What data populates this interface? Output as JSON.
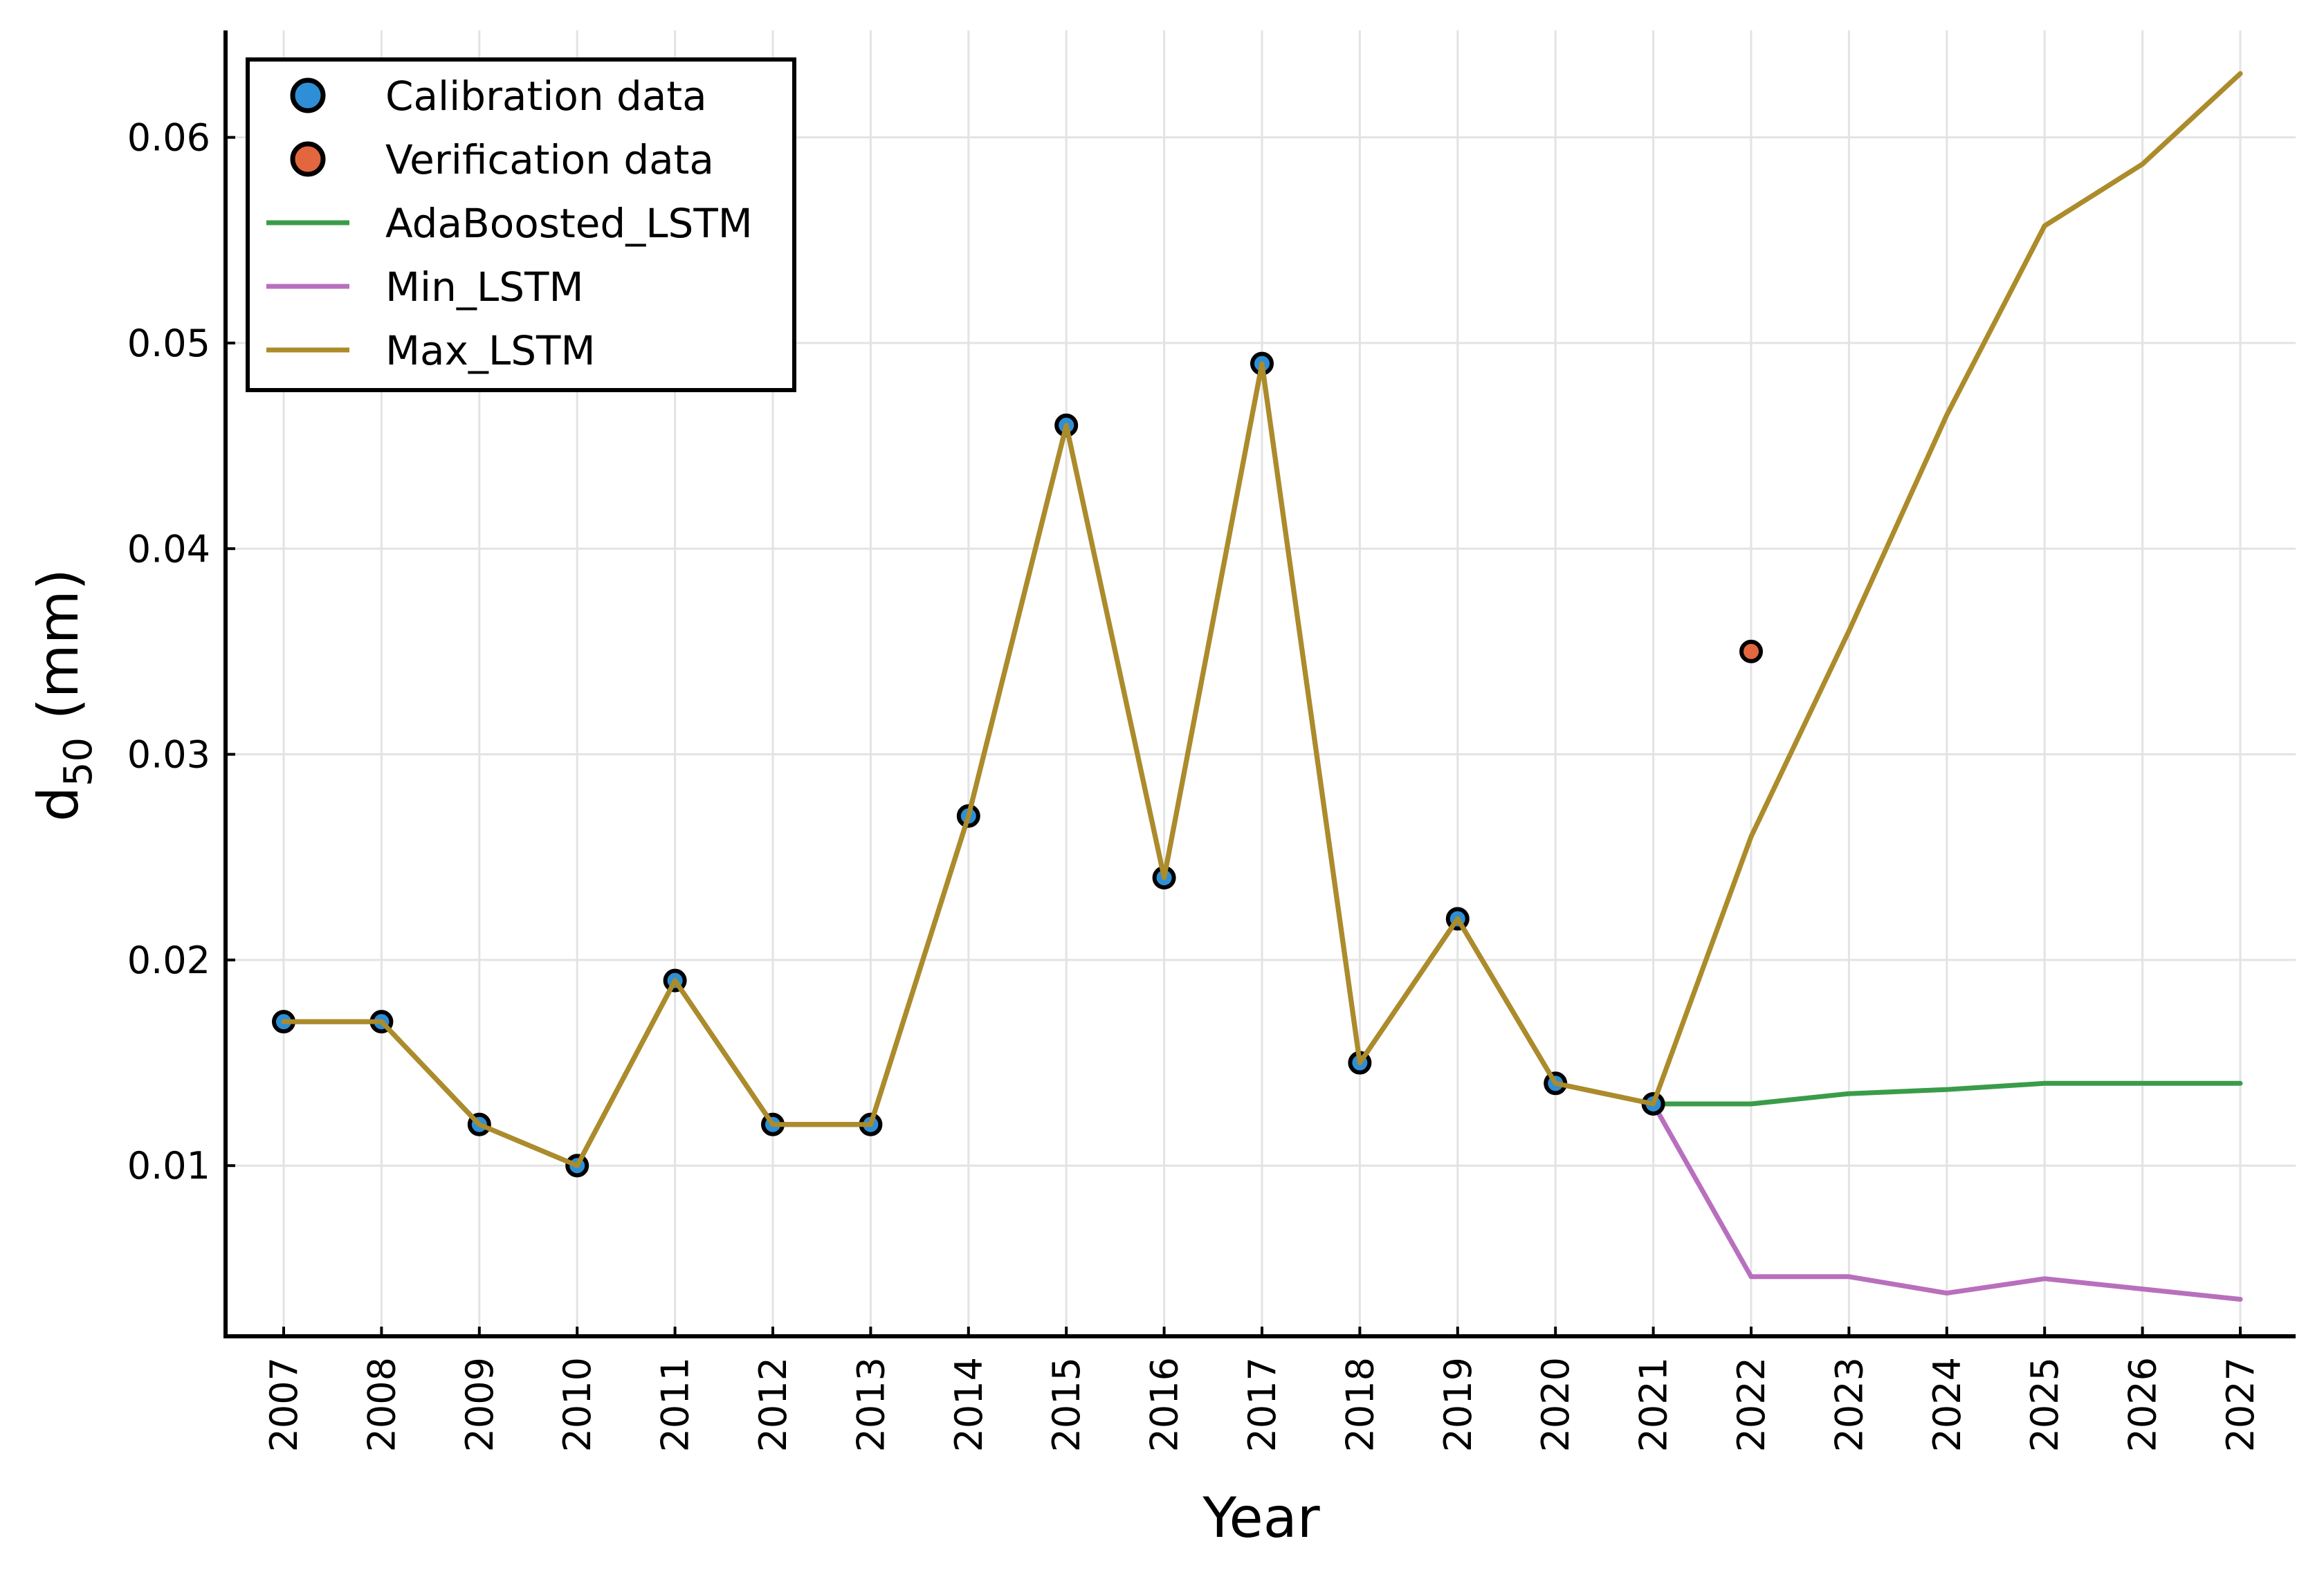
{
  "chart_data": {
    "type": "line",
    "xlabel": "Year",
    "ylabel": "d50 (mm)",
    "ylabel_main": "d",
    "ylabel_sub": "50",
    "ylabel_rest": " (mm)",
    "x_categories": [
      "2007",
      "2008",
      "2009",
      "2010",
      "2011",
      "2012",
      "2013",
      "2014",
      "2015",
      "2016",
      "2017",
      "2018",
      "2019",
      "2020",
      "2021",
      "2022",
      "2023",
      "2024",
      "2025",
      "2026",
      "2027"
    ],
    "ylim": [
      0.0017,
      0.0652
    ],
    "yticks": [
      0.01,
      0.02,
      0.03,
      0.04,
      0.05,
      0.06
    ],
    "ytick_labels": [
      "0.01",
      "0.02",
      "0.03",
      "0.04",
      "0.05",
      "0.06"
    ],
    "grid": true,
    "legend_position": "top-left",
    "series": [
      {
        "name": "Calibration data",
        "kind": "scatter",
        "color": "#2e8fd6",
        "x": [
          "2007",
          "2008",
          "2009",
          "2010",
          "2011",
          "2012",
          "2013",
          "2014",
          "2015",
          "2016",
          "2017",
          "2018",
          "2019",
          "2020",
          "2021"
        ],
        "y": [
          0.017,
          0.017,
          0.012,
          0.01,
          0.019,
          0.012,
          0.012,
          0.027,
          0.046,
          0.024,
          0.049,
          0.015,
          0.022,
          0.014,
          0.013
        ]
      },
      {
        "name": "Verification data",
        "kind": "scatter",
        "color": "#e2673f",
        "x": [
          "2022"
        ],
        "y": [
          0.035
        ]
      },
      {
        "name": "AdaBoosted_LSTM",
        "kind": "line",
        "color": "#3a9c4a",
        "x": [
          "2007",
          "2008",
          "2009",
          "2010",
          "2011",
          "2012",
          "2013",
          "2014",
          "2015",
          "2016",
          "2017",
          "2018",
          "2019",
          "2020",
          "2021",
          "2022",
          "2023",
          "2024",
          "2025",
          "2026",
          "2027"
        ],
        "y": [
          0.017,
          0.017,
          0.012,
          0.01,
          0.019,
          0.012,
          0.012,
          0.027,
          0.046,
          0.024,
          0.049,
          0.015,
          0.022,
          0.014,
          0.013,
          0.013,
          0.0135,
          0.0137,
          0.014,
          0.014,
          0.014
        ]
      },
      {
        "name": "Min_LSTM",
        "kind": "line",
        "color": "#b86fbd",
        "x": [
          "2007",
          "2008",
          "2009",
          "2010",
          "2011",
          "2012",
          "2013",
          "2014",
          "2015",
          "2016",
          "2017",
          "2018",
          "2019",
          "2020",
          "2021",
          "2022",
          "2023",
          "2024",
          "2025",
          "2026",
          "2027"
        ],
        "y": [
          0.017,
          0.017,
          0.012,
          0.01,
          0.019,
          0.012,
          0.012,
          0.027,
          0.046,
          0.024,
          0.049,
          0.015,
          0.022,
          0.014,
          0.013,
          0.0046,
          0.0046,
          0.0038,
          0.0045,
          0.004,
          0.0035
        ]
      },
      {
        "name": "Max_LSTM",
        "kind": "line",
        "color": "#ac8b2a",
        "x": [
          "2007",
          "2008",
          "2009",
          "2010",
          "2011",
          "2012",
          "2013",
          "2014",
          "2015",
          "2016",
          "2017",
          "2018",
          "2019",
          "2020",
          "2021",
          "2022",
          "2023",
          "2024",
          "2025",
          "2026",
          "2027"
        ],
        "y": [
          0.017,
          0.017,
          0.012,
          0.01,
          0.019,
          0.012,
          0.012,
          0.027,
          0.046,
          0.024,
          0.049,
          0.015,
          0.022,
          0.014,
          0.013,
          0.026,
          0.036,
          0.0465,
          0.0557,
          0.0587,
          0.0631
        ]
      }
    ]
  }
}
